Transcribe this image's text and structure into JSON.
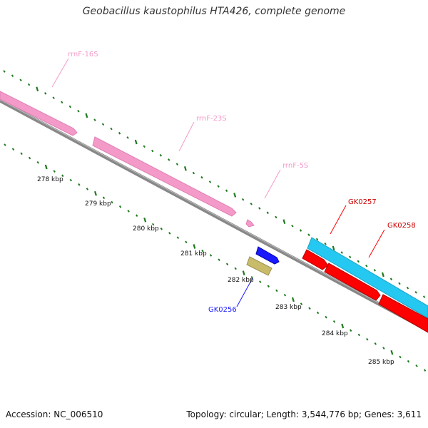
{
  "title": "Geobacillus kaustophilus HTA426, complete genome",
  "footer": {
    "accession": "Accession: NC_006510",
    "summary": "Topology: circular; Length: 3,544,776 bp; Genes: 3,611"
  },
  "ruler_labels": [
    "278 kbp",
    "279 kbp",
    "280 kbp",
    "281 kbp",
    "282 kbp",
    "283 kbp",
    "284 kbp",
    "285 kbp"
  ],
  "features": [
    {
      "label": "rrnF-16S",
      "color": "#f49ac9",
      "type": "rRNA"
    },
    {
      "label": "rrnF-23S",
      "color": "#f49ac9",
      "type": "rRNA"
    },
    {
      "label": "rrnF-5S",
      "color": "#f49ac9",
      "type": "rRNA"
    },
    {
      "label": "GK0256",
      "color": "#1a1aff",
      "type": "gene"
    },
    {
      "label": "GK0257",
      "color": "#ff0000",
      "type": "gene"
    },
    {
      "label": "GK0258",
      "color": "#ff0000",
      "type": "gene"
    }
  ],
  "colors": {
    "backbone": "#888888",
    "ticks": "#1f7a1f",
    "cds_track": "#24c8f0",
    "gene_blue": "#1a1aff",
    "gene_tan": "#c8bb6a",
    "gene_red": "#ff0000",
    "rrna": "#f49ac9"
  }
}
